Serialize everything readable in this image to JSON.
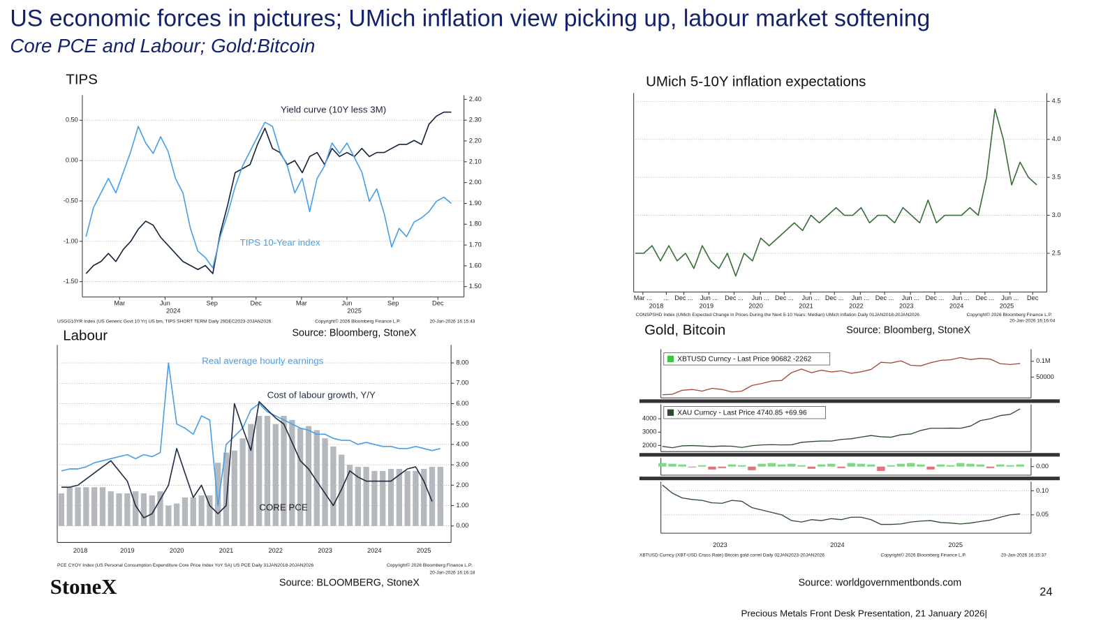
{
  "header": {
    "title": "US  economic forces in pictures; UMich inflation view picking up, labour market softening",
    "subtitle": "Core PCE and Labour; Gold:Bitcoin"
  },
  "chart_data": [
    {
      "type": "line",
      "title": "TIPS",
      "grid": true,
      "xlim": [
        -0.5,
        50.7
      ],
      "ylim": [
        -1.69,
        0.81
      ],
      "y2lim": [
        1.45,
        2.42
      ],
      "yticks": [
        {
          "value": -1.5,
          "label": "-1.50"
        },
        {
          "value": -1,
          "label": "-1.00"
        },
        {
          "value": -0.5,
          "label": "-0.50"
        },
        {
          "value": 0,
          "label": "0.00"
        },
        {
          "value": 0.5,
          "label": "0.50"
        }
      ],
      "y2ticks": [
        {
          "value": 1.5,
          "label": "1.50"
        },
        {
          "value": 1.6,
          "label": "1.60"
        },
        {
          "value": 1.7,
          "label": "1.70"
        },
        {
          "value": 1.8,
          "label": "1.80"
        },
        {
          "value": 1.9,
          "label": "1.90"
        },
        {
          "value": 2,
          "label": "2.00"
        },
        {
          "value": 2.1,
          "label": "2.10"
        },
        {
          "value": 2.2,
          "label": "2.20"
        },
        {
          "value": 2.3,
          "label": "2.30"
        },
        {
          "value": 2.4,
          "label": "2.40"
        }
      ],
      "xticks": [
        {
          "value": 4.5,
          "label": "Mar"
        },
        {
          "value": 10.6,
          "label": "Jun"
        },
        {
          "value": 16.9,
          "label": "Sep"
        },
        {
          "value": 22.8,
          "label": "Dec"
        },
        {
          "value": 28.9,
          "label": "Mar"
        },
        {
          "value": 35,
          "label": "Jun"
        },
        {
          "value": 41.2,
          "label": "Sep"
        },
        {
          "value": 47.2,
          "label": "Dec"
        }
      ],
      "xgroups": [
        {
          "value": 11.7,
          "label": "2024"
        },
        {
          "value": 36,
          "label": "2025"
        }
      ],
      "series": [
        {
          "name": "Yield curve (10Y less 3M)",
          "color": "#16233d",
          "axis": "y",
          "values": [
            -1.4,
            -1.3,
            -1.25,
            -1.15,
            -1.25,
            -1.1,
            -1.0,
            -0.85,
            -0.75,
            -0.8,
            -0.95,
            -1.05,
            -1.15,
            -1.25,
            -1.3,
            -1.35,
            -1.3,
            -1.4,
            -0.9,
            -0.55,
            -0.15,
            -0.1,
            -0.05,
            0.2,
            0.4,
            0.15,
            0.1,
            -0.05,
            0.0,
            -0.15,
            0.05,
            0.1,
            -0.05,
            0.15,
            0.05,
            0.1,
            0.05,
            0.15,
            0.05,
            0.1,
            0.1,
            0.15,
            0.2,
            0.2,
            0.25,
            0.2,
            0.45,
            0.55,
            0.6,
            0.6
          ]
        },
        {
          "name": "TIPS 10-Year index",
          "color": "#4a9fe8",
          "axis": "y2",
          "values": [
            1.74,
            1.88,
            1.95,
            2.02,
            1.95,
            2.05,
            2.15,
            2.27,
            2.19,
            2.14,
            2.22,
            2.15,
            2.02,
            1.95,
            1.78,
            1.67,
            1.64,
            1.59,
            1.74,
            1.85,
            1.98,
            2.08,
            2.15,
            2.22,
            2.29,
            2.27,
            2.15,
            2.08,
            1.95,
            2.02,
            1.86,
            2.02,
            2.08,
            2.19,
            2.14,
            2.19,
            2.12,
            2.05,
            1.91,
            1.97,
            1.85,
            1.69,
            1.78,
            1.74,
            1.81,
            1.83,
            1.86,
            1.91,
            1.93,
            1.9
          ]
        }
      ],
      "footnotes": [
        "USGG10YR Index (US Generic Govt 10 Yr) US bm, TIPS SHORT TERM Daily 29DEC2023-20JAN2026",
        "Copyright© 2026 Bloomberg Finance L.P.",
        "20-Jan-2026 16:15:43"
      ],
      "source": "Source: Bloomberg, StoneX"
    },
    {
      "type": "line",
      "title": "UMich 5-10Y inflation expectations",
      "grid": true,
      "y_axis_side": "right",
      "xlim": [
        -0.2,
        49.2
      ],
      "ylim": [
        1.99,
        4.61
      ],
      "yticks": [
        2.5,
        {
          "value": 3,
          "label": "3.0"
        },
        3.5,
        {
          "value": 4,
          "label": "4.0"
        },
        4.5
      ],
      "xticks": [
        {
          "value": 0.9,
          "label": "Mar ..."
        },
        {
          "value": 3.7,
          "label": "..."
        },
        {
          "value": 5.8,
          "label": "Dec ..."
        },
        {
          "value": 8.8,
          "label": "Jun ..."
        },
        {
          "value": 11.8,
          "label": "Dec ..."
        },
        {
          "value": 14.95,
          "label": "Jun ..."
        },
        {
          "value": 17.8,
          "label": "Dec ..."
        },
        {
          "value": 20.95,
          "label": "Jun ..."
        },
        {
          "value": 23.8,
          "label": "Dec ..."
        },
        {
          "value": 26.9,
          "label": "Jun ..."
        },
        {
          "value": 29.8,
          "label": "Dec ..."
        },
        {
          "value": 32.9,
          "label": "Jun ..."
        },
        {
          "value": 35.8,
          "label": "Dec ..."
        },
        {
          "value": 38.9,
          "label": "Jun ..."
        },
        {
          "value": 41.8,
          "label": "Dec ..."
        },
        {
          "value": 44.8,
          "label": "Jun ..."
        },
        {
          "value": 47.5,
          "label": "Dec"
        }
      ],
      "xgroups": [
        {
          "value": 2.5,
          "label": "2018"
        },
        {
          "value": 8.5,
          "label": "2019"
        },
        {
          "value": 14.4,
          "label": "2020"
        },
        {
          "value": 20.4,
          "label": "2021"
        },
        {
          "value": 26.4,
          "label": "2022"
        },
        {
          "value": 32.4,
          "label": "2023"
        },
        {
          "value": 38.4,
          "label": "2024"
        },
        {
          "value": 44.4,
          "label": "2025"
        }
      ],
      "series": [
        {
          "color": "#3b6e3b",
          "values": [
            2.5,
            2.5,
            2.6,
            2.4,
            2.6,
            2.4,
            2.5,
            2.3,
            2.6,
            2.4,
            2.3,
            2.5,
            2.2,
            2.5,
            2.4,
            2.7,
            2.6,
            2.7,
            2.8,
            2.9,
            2.8,
            3.0,
            2.9,
            3.0,
            3.1,
            3.0,
            3.0,
            3.1,
            2.9,
            3.0,
            3.0,
            2.9,
            3.1,
            3.0,
            2.9,
            3.2,
            2.9,
            3.0,
            3.0,
            3.0,
            3.1,
            3.0,
            3.5,
            4.4,
            4.0,
            3.4,
            3.7,
            3.5,
            3.4
          ]
        }
      ],
      "footnotes": [
        "CONSPSHD Index (UMich Expected Change in Prices During the Next 5-10 Years: Median) UMich inflation Daily 01JAN2018-20JAN2026",
        "Copyright© 2026 Bloomberg Finance L.P.",
        "20-Jan-2026 16:16:04"
      ],
      "source": "Source: Bloomberg, StoneX"
    },
    {
      "type": "combo",
      "title": "Labour",
      "grid": true,
      "y_axis_side": "right",
      "xlim": [
        -0.5,
        47.3
      ],
      "ylim": [
        -0.81,
        8.88
      ],
      "yticks": [
        {
          "value": 0,
          "label": "0.00"
        },
        {
          "value": 1,
          "label": "1.00"
        },
        {
          "value": 2,
          "label": "2.00"
        },
        {
          "value": 3,
          "label": "3.00"
        },
        {
          "value": 4,
          "label": "4.00"
        },
        {
          "value": 5,
          "label": "5.00"
        },
        {
          "value": 6,
          "label": "6.00"
        },
        {
          "value": 7,
          "label": "7.00"
        },
        {
          "value": 8,
          "label": "8.00"
        }
      ],
      "xticks": [
        {
          "value": 2.3,
          "label": "2018"
        },
        {
          "value": 8,
          "label": "2019"
        },
        {
          "value": 14,
          "label": "2020"
        },
        {
          "value": 20,
          "label": "2021"
        },
        {
          "value": 26,
          "label": "2022"
        },
        {
          "value": 32,
          "label": "2023"
        },
        {
          "value": 38,
          "label": "2024"
        },
        {
          "value": 44,
          "label": "2025"
        }
      ],
      "series": [
        {
          "name": "CORE PCE",
          "type": "bar",
          "color": "#b5b8bd",
          "values": [
            1.6,
            1.9,
            1.9,
            1.9,
            1.9,
            1.9,
            1.7,
            1.6,
            1.6,
            1.7,
            1.6,
            1.5,
            1.7,
            1.0,
            1.1,
            1.4,
            1.4,
            1.5,
            1.5,
            3.1,
            3.6,
            3.7,
            4.3,
            5.0,
            5.4,
            5.4,
            5.0,
            5.4,
            5.2,
            4.8,
            4.9,
            4.7,
            4.3,
            3.9,
            3.5,
            3.0,
            2.9,
            2.9,
            2.7,
            2.7,
            2.8,
            2.8,
            2.7,
            2.7,
            2.8,
            2.9,
            2.9
          ]
        },
        {
          "name": "Real average hourly earnings",
          "type": "line",
          "color": "#4a9fe8",
          "values": [
            2.7,
            2.8,
            2.8,
            2.9,
            3.1,
            3.2,
            3.3,
            3.4,
            3.5,
            3.3,
            3.5,
            3.4,
            3.6,
            8.0,
            5.0,
            4.8,
            4.5,
            5.4,
            5.2,
            1.0,
            4.0,
            4.4,
            4.8,
            5.7,
            6.0,
            5.6,
            5.4,
            5.2,
            5.0,
            4.8,
            4.7,
            4.5,
            4.5,
            4.3,
            4.2,
            4.2,
            4.0,
            4.1,
            4.0,
            3.9,
            3.9,
            3.8,
            3.8,
            3.9,
            3.8,
            3.7,
            3.8
          ]
        },
        {
          "name": "Cost of labour growth, Y/Y",
          "type": "line",
          "color": "#1f2d45",
          "values": [
            1.9,
            1.9,
            2.0,
            2.3,
            2.6,
            2.9,
            3.2,
            2.7,
            2.2,
            1.0,
            0.4,
            0.6,
            1.3,
            2.0,
            3.8,
            2.6,
            1.4,
            2.0,
            1.0,
            0.6,
            1.0,
            6.0,
            4.8,
            3.7,
            6.1,
            5.7,
            5.3,
            5.0,
            4.1,
            3.2,
            2.8,
            2.2,
            1.6,
            1.0,
            1.8,
            2.7,
            2.4,
            2.2,
            2.2,
            2.2,
            2.2,
            2.5,
            2.8,
            2.9,
            2.2,
            1.2,
            null
          ]
        }
      ],
      "footnotes": [
        "PCE CYOY Index (US Personal Consumption Expenditure Core Price Index YoY SA) US PCE Daily 31JAN2018-20JAN2026",
        "Copyright© 2026 Bloomberg Finance L.P.",
        "20-Jan-2026 16:16:18"
      ],
      "source": "Source: BLOOMBERG, StoneX"
    },
    {
      "type": "panels",
      "title": "Gold, Bitcoin",
      "xlim": [
        -0.15,
        37.1
      ],
      "xticks": [
        {
          "value": 5.8,
          "label": "2023"
        },
        {
          "value": 17.6,
          "label": "2024"
        },
        {
          "value": 29.5,
          "label": "2025"
        }
      ],
      "panels": [
        {
          "type": "line",
          "log": true,
          "y_axis_side": "right",
          "grid": false,
          "ylim": [
            20000,
            170000
          ],
          "yticks": [
            50000,
            {
              "value": 100000,
              "label": "0.1M"
            }
          ],
          "series": [
            {
              "name": "XBTUSD Curncy - Last Price 90682  -2262",
              "color": "#a8483a",
              "legend_color": "#3cc43c",
              "values": [
                23000,
                23500,
                28000,
                29000,
                27000,
                30500,
                29000,
                26000,
                27000,
                34500,
                37700,
                42000,
                43000,
                61000,
                71000,
                60500,
                67500,
                62700,
                66000,
                59000,
                63000,
                70000,
                96000,
                93000,
                102000,
                84000,
                82000,
                94000,
                104000,
                107000,
                118000,
                108000,
                114000,
                110000,
                90000,
                87000,
                91000
              ]
            }
          ]
        },
        {
          "type": "line",
          "log": false,
          "y_axis_side": "left",
          "grid": false,
          "ylim": [
            1540,
            5080
          ],
          "yticks": [
            2000,
            3000,
            4000
          ],
          "series": [
            {
              "name": "XAU Curncy - Last Price 4740.85 +69.96",
              "color": "#2d4a2d",
              "legend_color": "#2d4a2d",
              "values": [
                1930,
                1830,
                1970,
                1990,
                1960,
                1920,
                1960,
                1940,
                1850,
                1980,
                2040,
                2060,
                2040,
                2050,
                2230,
                2290,
                2330,
                2330,
                2450,
                2500,
                2630,
                2740,
                2650,
                2620,
                2800,
                2860,
                3120,
                3290,
                3290,
                3300,
                3290,
                3450,
                3860,
                4000,
                4240,
                4330,
                4740
              ]
            }
          ]
        },
        {
          "type": "bar",
          "log": false,
          "y_axis_side": "right",
          "grid": false,
          "ylim": [
            -0.12,
            0.12
          ],
          "yticks": [
            {
              "value": 0,
              "label": "0.00"
            }
          ],
          "positive_color": "#7fd98a",
          "negative_color": "#e8707a",
          "values": [
            0.05,
            0.04,
            0.03,
            -0.01,
            0.02,
            -0.04,
            -0.02,
            0.03,
            0.02,
            -0.05,
            0.04,
            0.05,
            0.03,
            0.04,
            0.02,
            -0.03,
            0.03,
            0.04,
            -0.02,
            0.05,
            0.04,
            0.03,
            -0.06,
            0.02,
            0.04,
            0.05,
            0.03,
            -0.04,
            0.03,
            0.02,
            0.05,
            0.04,
            0.03,
            -0.02,
            0.03,
            0.02,
            0.03
          ]
        },
        {
          "type": "line",
          "log": false,
          "y_axis_side": "right",
          "grid": true,
          "ylim": [
            0.0118,
            0.119
          ],
          "yticks": [
            {
              "value": 0.05,
              "label": "0.05"
            },
            {
              "value": 0.1,
              "label": "0.10"
            }
          ],
          "series": [
            {
              "color": "#2d4a2d",
              "values": [
                0.112,
                0.095,
                0.085,
                0.082,
                0.08,
                0.075,
                0.074,
                0.08,
                0.078,
                0.065,
                0.06,
                0.055,
                0.05,
                0.038,
                0.035,
                0.04,
                0.038,
                0.042,
                0.04,
                0.045,
                0.045,
                0.04,
                0.03,
                0.03,
                0.031,
                0.035,
                0.037,
                0.038,
                0.034,
                0.033,
                0.031,
                0.033,
                0.036,
                0.039,
                0.045,
                0.05,
                0.052
              ]
            }
          ]
        }
      ],
      "footnotes": [
        "XBTUSD Curncy (XBT-USD Cross Rate) Bitcoin gold correl Daily 02JAN2023-20JAN2026",
        "Copyright© 2026 Bloomberg Finance L.P.",
        "20-Jan-2026 16:15:37"
      ],
      "source": "Source: worldgovernmentbonds.com"
    }
  ],
  "footer": {
    "logo": "StoneX",
    "page": 24,
    "presentation": "Precious Metals Front Desk Presentation, 21 January 2026|"
  }
}
